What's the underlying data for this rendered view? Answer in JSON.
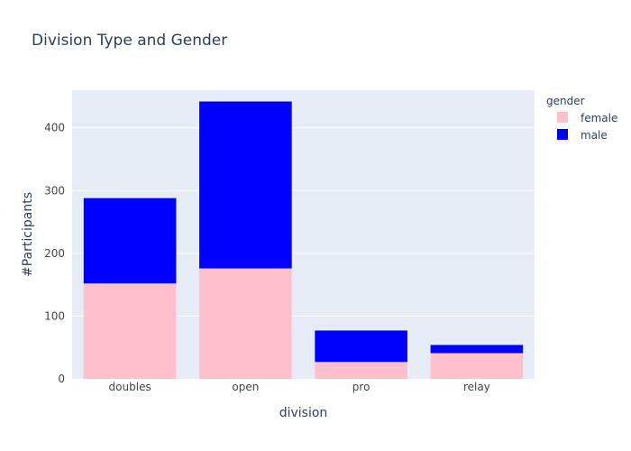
{
  "chart_data": {
    "type": "bar",
    "barmode": "stack",
    "title": "Division Type and Gender",
    "xlabel": "division",
    "ylabel": "#Participants",
    "categories": [
      "doubles",
      "open",
      "pro",
      "relay"
    ],
    "series": [
      {
        "name": "female",
        "color": "#ffc0cb",
        "values": [
          152,
          176,
          27,
          41
        ]
      },
      {
        "name": "male",
        "color": "#0000ff",
        "values": [
          136,
          266,
          50,
          13
        ]
      }
    ],
    "ylim": [
      0,
      460
    ],
    "yticks": [
      0,
      100,
      200,
      300,
      400
    ],
    "grid": true,
    "plot_bgcolor": "#e5ecf6",
    "legend": {
      "title": "gender",
      "placement": "top-right"
    }
  }
}
